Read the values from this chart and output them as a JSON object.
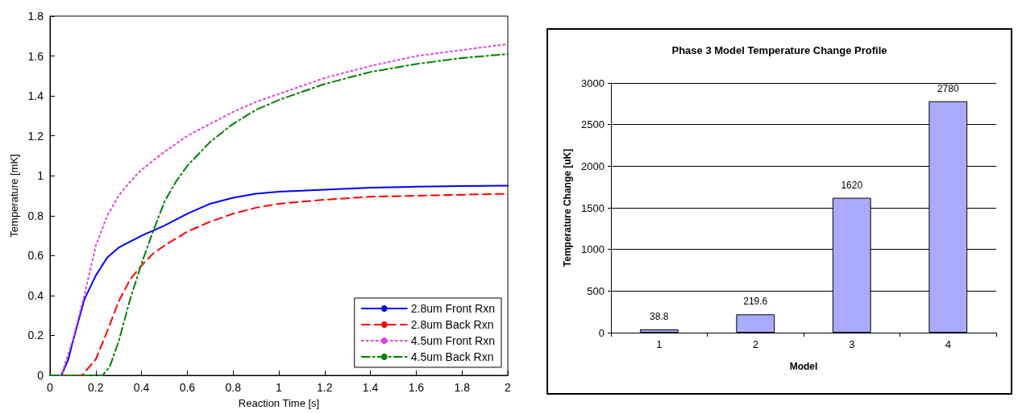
{
  "chart_data": [
    {
      "type": "line",
      "xlabel": "Reaction Time [s]",
      "ylabel": "Temperature [mK]",
      "xlim": [
        0,
        2
      ],
      "xticks": [
        0,
        0.2,
        0.4,
        0.6,
        0.8,
        1,
        1.2,
        1.4,
        1.6,
        1.8,
        2
      ],
      "ylim": [
        0,
        1.8
      ],
      "yticks": [
        0,
        0.2,
        0.4,
        0.6,
        0.8,
        1,
        1.2,
        1.4,
        1.6,
        1.8
      ],
      "grid": false,
      "legend": "bottom right",
      "marker": "none",
      "series": [
        {
          "name": "2.8um Front Rxn",
          "color": "#0000ff",
          "line_style": "solid",
          "x": [
            0,
            0.05,
            0.08,
            0.1,
            0.15,
            0.2,
            0.25,
            0.3,
            0.4,
            0.5,
            0.6,
            0.7,
            0.8,
            0.9,
            1.0,
            1.2,
            1.4,
            1.6,
            1.8,
            2.0
          ],
          "values": [
            0,
            0,
            0.08,
            0.17,
            0.38,
            0.5,
            0.59,
            0.64,
            0.7,
            0.75,
            0.81,
            0.86,
            0.89,
            0.91,
            0.92,
            0.93,
            0.94,
            0.945,
            0.948,
            0.95
          ]
        },
        {
          "name": "2.8um Back Rxn",
          "color": "#ff0000",
          "line_style": "dashed",
          "x": [
            0,
            0.14,
            0.2,
            0.25,
            0.3,
            0.35,
            0.4,
            0.45,
            0.5,
            0.6,
            0.7,
            0.8,
            0.9,
            1.0,
            1.2,
            1.4,
            1.6,
            1.8,
            2.0
          ],
          "values": [
            0,
            0,
            0.08,
            0.22,
            0.37,
            0.48,
            0.55,
            0.61,
            0.65,
            0.72,
            0.77,
            0.81,
            0.84,
            0.86,
            0.88,
            0.895,
            0.9,
            0.905,
            0.91
          ]
        },
        {
          "name": "4.5um Front Rxn",
          "color": "#dd44dd",
          "line_style": "dotted",
          "x": [
            0,
            0.05,
            0.1,
            0.15,
            0.2,
            0.25,
            0.3,
            0.35,
            0.4,
            0.5,
            0.6,
            0.7,
            0.8,
            0.9,
            1.0,
            1.2,
            1.4,
            1.6,
            1.8,
            2.0
          ],
          "values": [
            0,
            0,
            0.18,
            0.4,
            0.65,
            0.8,
            0.9,
            0.97,
            1.03,
            1.12,
            1.2,
            1.26,
            1.32,
            1.37,
            1.41,
            1.49,
            1.55,
            1.6,
            1.63,
            1.66
          ]
        },
        {
          "name": "4.5um Back Rxn",
          "color": "#008000",
          "line_style": "dashdot",
          "x": [
            0,
            0.23,
            0.26,
            0.3,
            0.35,
            0.4,
            0.45,
            0.5,
            0.55,
            0.6,
            0.7,
            0.8,
            0.9,
            1.0,
            1.2,
            1.4,
            1.6,
            1.8,
            2.0
          ],
          "values": [
            0,
            0,
            0.04,
            0.17,
            0.38,
            0.56,
            0.72,
            0.87,
            0.97,
            1.05,
            1.17,
            1.26,
            1.33,
            1.38,
            1.46,
            1.52,
            1.56,
            1.59,
            1.61
          ]
        }
      ]
    },
    {
      "type": "bar",
      "title": "Phase 3 Model Temperature Change Profile",
      "xlabel": "Model",
      "ylabel": "Temperature Change [uK]",
      "categories": [
        "1",
        "2",
        "3",
        "4"
      ],
      "values": [
        38.8,
        219.6,
        1620,
        2780
      ],
      "color": "#aaaaff",
      "ylim": [
        0,
        3000
      ],
      "yticks": [
        0,
        500,
        1000,
        1500,
        2000,
        2500,
        3000
      ],
      "grid": "y",
      "data_labels": true
    }
  ]
}
